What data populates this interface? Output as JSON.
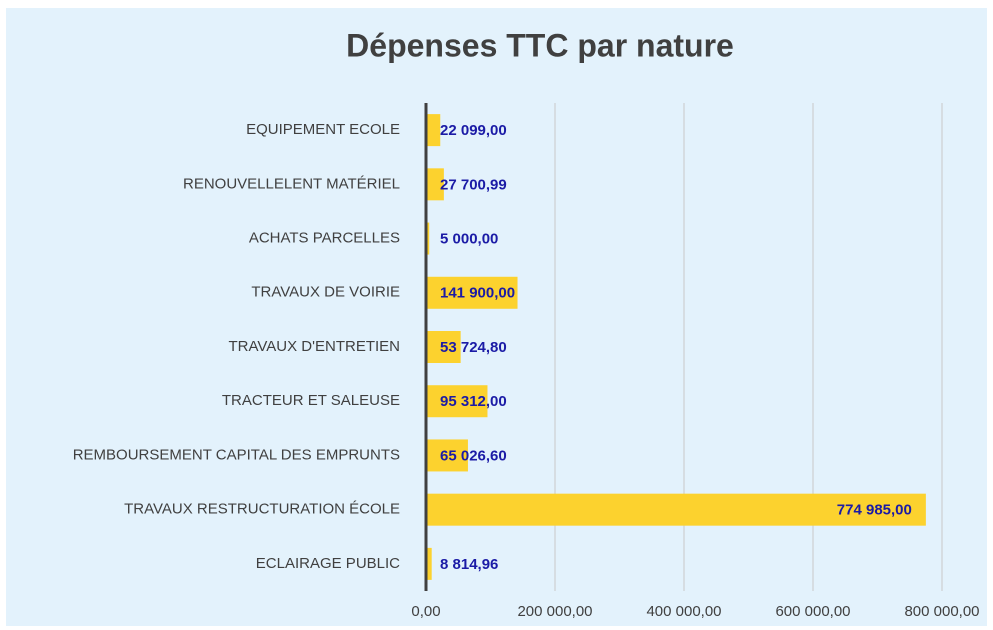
{
  "chart_data": {
    "type": "bar",
    "orientation": "horizontal",
    "title": "Dépenses TTC par nature",
    "categories": [
      "EQUIPEMENT ECOLE",
      "RENOUVELLELENT MATÉRIEL",
      "ACHATS PARCELLES",
      "TRAVAUX DE VOIRIE",
      "TRAVAUX D'ENTRETIEN",
      "TRACTEUR ET SALEUSE",
      "REMBOURSEMENT CAPITAL DES EMPRUNTS",
      "TRAVAUX RESTRUCTURATION ÉCOLE",
      "ECLAIRAGE PUBLIC"
    ],
    "values": [
      22099,
      27700.99,
      5000,
      141900,
      53724.8,
      95312,
      65026.6,
      774985,
      8814.96
    ],
    "value_labels": [
      "22 099,00",
      "27 700,99",
      "5 000,00",
      "141 900,00",
      "53 724,80",
      "95 312,00",
      "65 026,60",
      "774 985,00",
      "8 814,96"
    ],
    "color": "#fcd22e",
    "xlim": [
      0,
      800000
    ],
    "xticks": [
      {
        "value": 0,
        "label": "0,00"
      },
      {
        "value": 200000,
        "label": "200 000,00"
      },
      {
        "value": 400000,
        "label": "400 000,00"
      },
      {
        "value": 600000,
        "label": "600 000,00"
      },
      {
        "value": 800000,
        "label": "800 000,00"
      }
    ],
    "grid": true
  }
}
